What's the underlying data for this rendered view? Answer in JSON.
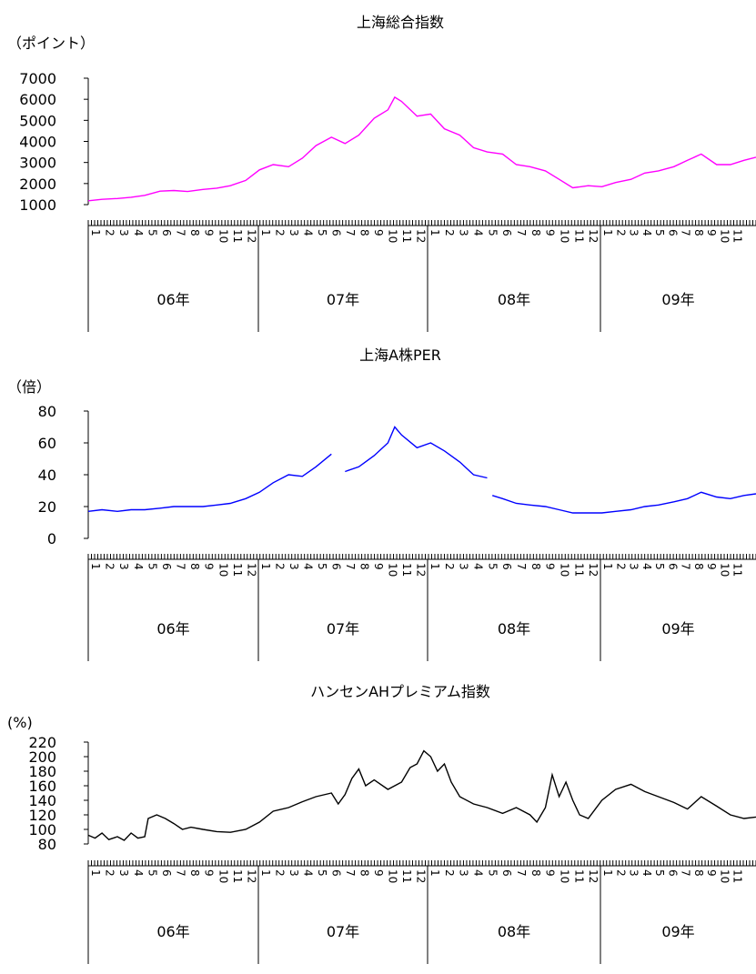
{
  "chart_data": [
    {
      "type": "line",
      "title": "上海総合指数",
      "ylabel": "（ポイント）",
      "color": "#ff00ff",
      "ylim": [
        1000,
        7000
      ],
      "yticks": [
        1000,
        2000,
        3000,
        4000,
        5000,
        6000,
        7000
      ],
      "xlim": [
        2006.0,
        2009.9
      ],
      "years": [
        "06年",
        "07年",
        "08年",
        "09年"
      ],
      "month_labels": [
        "1",
        "2",
        "3",
        "4",
        "5",
        "6",
        "7",
        "8",
        "9",
        "10",
        "11",
        "12"
      ],
      "series": [
        {
          "x": [
            2006.0,
            2006.08,
            2006.17,
            2006.25,
            2006.33,
            2006.42,
            2006.5,
            2006.58,
            2006.67,
            2006.75,
            2006.83,
            2006.92,
            2007.0,
            2007.08,
            2007.17,
            2007.25,
            2007.33,
            2007.42,
            2007.5,
            2007.58,
            2007.67,
            2007.75,
            2007.79,
            2007.83,
            2007.92,
            2008.0,
            2008.08,
            2008.17,
            2008.25,
            2008.33,
            2008.42,
            2008.5,
            2008.58,
            2008.67,
            2008.75,
            2008.83,
            2008.92,
            2009.0,
            2009.08,
            2009.17,
            2009.25,
            2009.33,
            2009.42,
            2009.5,
            2009.58,
            2009.67,
            2009.75,
            2009.83,
            2009.9
          ],
          "y": [
            1180,
            1250,
            1290,
            1350,
            1440,
            1640,
            1670,
            1620,
            1720,
            1780,
            1900,
            2150,
            2650,
            2900,
            2800,
            3200,
            3800,
            4200,
            3900,
            4300,
            5100,
            5500,
            6100,
            5900,
            5200,
            5300,
            4600,
            4300,
            3700,
            3500,
            3400,
            2900,
            2800,
            2600,
            2200,
            1800,
            1900,
            1850,
            2050,
            2200,
            2500,
            2600,
            2800,
            3100,
            3400,
            2900,
            2900,
            3100,
            3250
          ]
        }
      ]
    },
    {
      "type": "line",
      "title": "上海A株PER",
      "ylabel": "（倍）",
      "color": "#0000ff",
      "ylim": [
        0,
        80
      ],
      "yticks": [
        0,
        20,
        40,
        60,
        80
      ],
      "xlim": [
        2006.0,
        2009.9
      ],
      "years": [
        "06年",
        "07年",
        "08年",
        "09年"
      ],
      "month_labels": [
        "1",
        "2",
        "3",
        "4",
        "5",
        "6",
        "7",
        "8",
        "9",
        "10",
        "11",
        "12"
      ],
      "series": [
        {
          "x": [
            2006.0,
            2006.08,
            2006.17,
            2006.25,
            2006.33,
            2006.42,
            2006.5,
            2006.58,
            2006.67,
            2006.75,
            2006.83,
            2006.92,
            2007.0,
            2007.08,
            2007.17,
            2007.25,
            2007.33,
            2007.42
          ],
          "y": [
            17,
            18,
            17,
            18,
            18,
            19,
            20,
            20,
            20,
            21,
            22,
            25,
            29,
            35,
            40,
            39,
            45,
            53
          ]
        },
        {
          "x": [
            2007.5,
            2007.58,
            2007.67,
            2007.75,
            2007.79,
            2007.83,
            2007.92,
            2008.0,
            2008.08,
            2008.17,
            2008.25,
            2008.33
          ],
          "y": [
            42,
            45,
            52,
            60,
            70,
            65,
            57,
            60,
            55,
            48,
            40,
            38
          ]
        },
        {
          "x": [
            2008.36,
            2008.42,
            2008.5,
            2008.58,
            2008.67,
            2008.75,
            2008.83,
            2008.92,
            2009.0,
            2009.08,
            2009.17,
            2009.25,
            2009.33,
            2009.42,
            2009.5,
            2009.58,
            2009.67,
            2009.75,
            2009.83,
            2009.9
          ],
          "y": [
            27,
            25,
            22,
            21,
            20,
            18,
            16,
            16,
            16,
            17,
            18,
            20,
            21,
            23,
            25,
            29,
            26,
            25,
            27,
            28
          ]
        }
      ]
    },
    {
      "type": "line",
      "title": "ハンセンAHプレミアム指数",
      "ylabel": "(%)",
      "color": "#000000",
      "ylim": [
        80,
        220
      ],
      "yticks": [
        80,
        100,
        120,
        140,
        160,
        180,
        200,
        220
      ],
      "xlim": [
        2006.0,
        2009.9
      ],
      "years": [
        "06年",
        "07年",
        "08年",
        "09年"
      ],
      "month_labels": [
        "1",
        "2",
        "3",
        "4",
        "5",
        "6",
        "7",
        "8",
        "9",
        "10",
        "11",
        "12"
      ],
      "series": [
        {
          "x": [
            2006.0,
            2006.04,
            2006.08,
            2006.12,
            2006.17,
            2006.21,
            2006.25,
            2006.29,
            2006.33,
            2006.35,
            2006.4,
            2006.45,
            2006.5,
            2006.55,
            2006.6,
            2006.67,
            2006.75,
            2006.83,
            2006.92,
            2007.0,
            2007.08,
            2007.17,
            2007.25,
            2007.33,
            2007.42,
            2007.46,
            2007.5,
            2007.54,
            2007.58,
            2007.62,
            2007.67,
            2007.75,
            2007.83,
            2007.88,
            2007.92,
            2007.96,
            2008.0,
            2008.04,
            2008.08,
            2008.12,
            2008.17,
            2008.25,
            2008.33,
            2008.42,
            2008.5,
            2008.58,
            2008.62,
            2008.67,
            2008.71,
            2008.75,
            2008.79,
            2008.83,
            2008.87,
            2008.92,
            2009.0,
            2009.08,
            2009.17,
            2009.25,
            2009.33,
            2009.42,
            2009.5,
            2009.58,
            2009.67,
            2009.75,
            2009.83,
            2009.9
          ],
          "y": [
            92,
            88,
            95,
            86,
            90,
            85,
            95,
            88,
            90,
            115,
            120,
            115,
            108,
            100,
            103,
            100,
            97,
            96,
            100,
            110,
            125,
            130,
            138,
            145,
            150,
            135,
            148,
            170,
            183,
            160,
            168,
            155,
            165,
            185,
            190,
            208,
            200,
            180,
            190,
            165,
            145,
            135,
            130,
            122,
            130,
            120,
            110,
            130,
            175,
            145,
            165,
            140,
            120,
            115,
            140,
            155,
            162,
            152,
            145,
            137,
            128,
            145,
            132,
            120,
            115,
            117
          ]
        }
      ]
    }
  ]
}
